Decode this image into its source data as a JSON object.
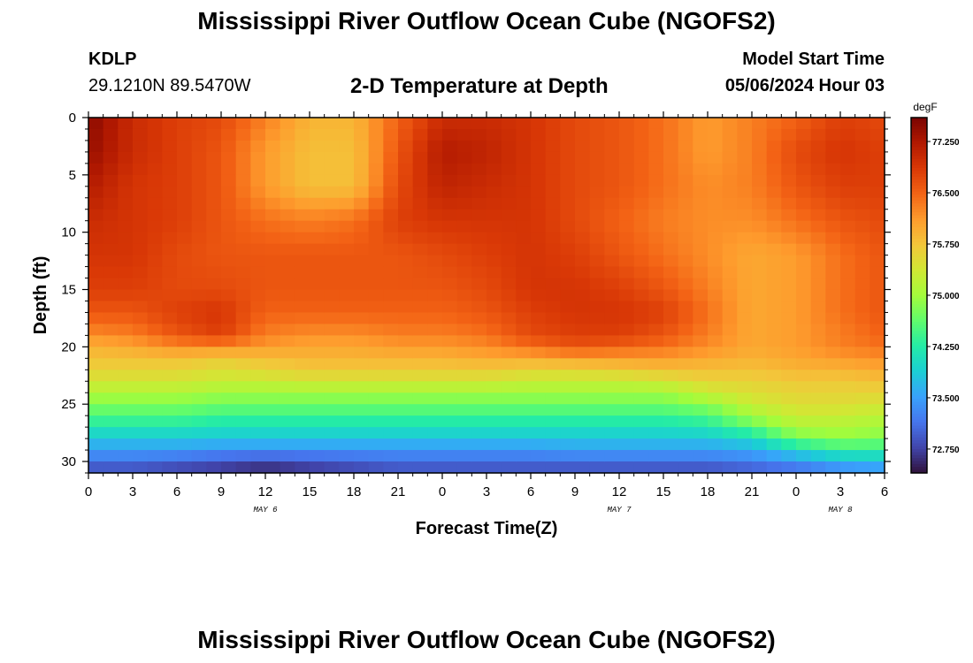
{
  "header": {
    "title": "Mississippi River Outflow Ocean Cube (NGOFS2)",
    "station": "KDLP",
    "coordinates": "29.1210N  89.5470W",
    "subtitle": "2-D Temperature at Depth",
    "model_start_label": "Model Start Time",
    "model_start_value": "05/06/2024 Hour 03"
  },
  "footer": {
    "title": "Mississippi River Outflow Ocean Cube (NGOFS2)"
  },
  "chart_data": {
    "type": "heatmap",
    "xlabel": "Forecast Time(Z)",
    "ylabel": "Depth (ft)",
    "x_unit": "hours",
    "xlim": [
      0,
      54
    ],
    "ylim": [
      31,
      0
    ],
    "x_ticks": [
      0,
      3,
      6,
      9,
      12,
      15,
      18,
      21,
      24,
      27,
      30,
      33,
      36,
      39,
      42,
      45,
      48,
      51,
      54
    ],
    "x_tick_labels": [
      "0",
      "3",
      "6",
      "9",
      "12",
      "15",
      "18",
      "21",
      "0",
      "3",
      "6",
      "9",
      "12",
      "15",
      "18",
      "21",
      "0",
      "3",
      "6"
    ],
    "date_labels": [
      {
        "text": "MAY 6",
        "x": 12
      },
      {
        "text": "MAY 7",
        "x": 36
      },
      {
        "text": "MAY 8",
        "x": 51
      }
    ],
    "y_ticks": [
      0,
      5,
      10,
      15,
      20,
      25,
      30
    ],
    "y_tick_labels": [
      "0",
      "5",
      "10",
      "15",
      "20",
      "25",
      "30"
    ],
    "colorbar": {
      "unit": "degF",
      "min": 72.4,
      "max": 77.6,
      "ticks": [
        77.25,
        76.5,
        75.75,
        75.0,
        74.25,
        73.5,
        72.75
      ],
      "tick_labels": [
        "77.250",
        "76.500",
        "75.750",
        "75.000",
        "74.250",
        "73.500",
        "72.750"
      ],
      "colormap": [
        "#30123b",
        "#4145ab",
        "#4675ed",
        "#39a2fc",
        "#1bcfd4",
        "#24eca6",
        "#61fc6c",
        "#a4fc3b",
        "#d1e834",
        "#f3c63a",
        "#fe9b2d",
        "#f36315",
        "#d93806",
        "#b11901",
        "#7a0402"
      ]
    },
    "x_columns_hours": [
      0,
      3,
      6,
      9,
      12,
      15,
      18,
      21,
      24,
      27,
      30,
      33,
      36,
      39,
      42,
      45,
      48,
      51,
      54
    ],
    "depth_rows_ft": [
      0,
      3,
      6,
      9,
      12,
      15,
      17,
      19,
      20,
      21,
      22,
      23,
      24,
      25,
      26,
      27,
      28,
      29,
      30,
      31
    ],
    "temperature_degF": [
      [
        77.5,
        77.0,
        76.8,
        76.7,
        76.3,
        75.9,
        75.9,
        76.5,
        77.0,
        77.0,
        76.9,
        76.7,
        76.6,
        76.4,
        76.1,
        76.3,
        76.5,
        76.8,
        76.7
      ],
      [
        77.4,
        77.0,
        76.8,
        76.6,
        76.1,
        75.8,
        75.8,
        76.6,
        77.2,
        77.1,
        76.9,
        76.7,
        76.6,
        76.4,
        76.1,
        76.3,
        76.7,
        76.9,
        76.8
      ],
      [
        77.2,
        76.9,
        76.8,
        76.6,
        76.1,
        75.8,
        75.8,
        76.7,
        77.1,
        77.0,
        76.9,
        76.7,
        76.6,
        76.4,
        76.2,
        76.3,
        76.6,
        76.8,
        76.8
      ],
      [
        77.0,
        76.9,
        76.8,
        76.6,
        76.4,
        76.3,
        76.4,
        76.8,
        76.9,
        76.9,
        76.9,
        76.7,
        76.5,
        76.3,
        76.2,
        76.2,
        76.4,
        76.6,
        76.7
      ],
      [
        76.9,
        76.9,
        76.7,
        76.6,
        76.6,
        76.6,
        76.6,
        76.6,
        76.7,
        76.8,
        76.9,
        76.8,
        76.6,
        76.4,
        76.2,
        76.0,
        76.1,
        76.4,
        76.6
      ],
      [
        76.8,
        76.8,
        76.7,
        76.7,
        76.6,
        76.6,
        76.6,
        76.6,
        76.6,
        76.7,
        76.9,
        76.9,
        76.8,
        76.6,
        76.3,
        76.0,
        76.1,
        76.4,
        76.6
      ],
      [
        76.6,
        76.6,
        76.8,
        76.9,
        76.5,
        76.5,
        76.5,
        76.5,
        76.5,
        76.6,
        76.8,
        76.9,
        76.9,
        76.8,
        76.4,
        76.0,
        76.1,
        76.4,
        76.6
      ],
      [
        76.2,
        76.3,
        76.6,
        76.8,
        76.3,
        76.2,
        76.2,
        76.3,
        76.3,
        76.4,
        76.7,
        76.8,
        76.8,
        76.6,
        76.3,
        76.0,
        76.1,
        76.3,
        76.5
      ],
      [
        75.9,
        76.0,
        76.2,
        76.2,
        76.1,
        76.0,
        76.0,
        76.1,
        76.1,
        76.2,
        76.4,
        76.6,
        76.5,
        76.4,
        76.2,
        76.0,
        76.1,
        76.3,
        76.4
      ],
      [
        75.8,
        75.8,
        75.8,
        75.7,
        75.8,
        75.9,
        75.9,
        75.9,
        75.9,
        76.0,
        76.0,
        76.1,
        76.1,
        76.1,
        76.0,
        75.9,
        76.0,
        76.1,
        76.2
      ],
      [
        75.6,
        75.6,
        75.6,
        75.5,
        75.6,
        75.7,
        75.7,
        75.7,
        75.7,
        75.7,
        75.6,
        75.6,
        75.7,
        75.8,
        75.8,
        75.8,
        75.9,
        75.9,
        76.0
      ],
      [
        75.4,
        75.4,
        75.4,
        75.3,
        75.3,
        75.4,
        75.4,
        75.4,
        75.4,
        75.4,
        75.3,
        75.3,
        75.3,
        75.4,
        75.6,
        75.6,
        75.7,
        75.7,
        75.8
      ],
      [
        75.1,
        75.1,
        75.1,
        75.0,
        75.0,
        75.0,
        75.0,
        75.0,
        75.0,
        75.0,
        75.0,
        75.0,
        75.0,
        75.0,
        75.3,
        75.5,
        75.6,
        75.6,
        75.6
      ],
      [
        74.8,
        74.8,
        74.8,
        74.7,
        74.7,
        74.7,
        74.7,
        74.7,
        74.7,
        74.7,
        74.7,
        74.7,
        74.7,
        74.7,
        74.9,
        75.3,
        75.5,
        75.5,
        75.4
      ],
      [
        74.5,
        74.5,
        74.5,
        74.4,
        74.4,
        74.4,
        74.4,
        74.4,
        74.4,
        74.4,
        74.4,
        74.4,
        74.4,
        74.4,
        74.5,
        75.0,
        75.3,
        75.3,
        75.2
      ],
      [
        74.2,
        74.2,
        74.2,
        74.1,
        74.1,
        74.1,
        74.1,
        74.1,
        74.1,
        74.1,
        74.1,
        74.1,
        74.1,
        74.1,
        74.2,
        74.6,
        75.1,
        75.1,
        75.0
      ],
      [
        73.8,
        73.8,
        73.8,
        73.8,
        73.8,
        73.8,
        73.8,
        73.8,
        73.8,
        73.8,
        73.8,
        73.8,
        73.8,
        73.8,
        73.8,
        74.0,
        74.7,
        74.9,
        74.8
      ],
      [
        73.5,
        73.5,
        73.5,
        73.4,
        73.4,
        73.4,
        73.4,
        73.4,
        73.4,
        73.4,
        73.4,
        73.5,
        73.5,
        73.5,
        73.5,
        73.6,
        74.0,
        74.3,
        74.3
      ],
      [
        73.1,
        73.1,
        73.0,
        72.9,
        72.8,
        72.9,
        73.0,
        73.1,
        73.1,
        73.1,
        73.1,
        73.1,
        73.1,
        73.1,
        73.1,
        73.2,
        73.4,
        73.7,
        73.8
      ],
      [
        72.8,
        72.8,
        72.7,
        72.6,
        72.5,
        72.6,
        72.7,
        72.8,
        72.8,
        72.8,
        72.8,
        72.8,
        72.8,
        72.8,
        72.8,
        72.9,
        73.0,
        73.2,
        73.3
      ]
    ]
  }
}
